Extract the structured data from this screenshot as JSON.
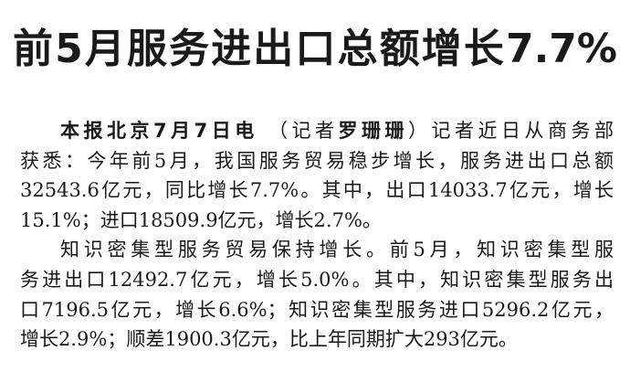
{
  "headline": "前5月服务进出口总额增长7.7%",
  "dateline": {
    "lead": "本报北京7月7日电",
    "reporter_open": "（记者",
    "reporter_name": "罗珊珊",
    "reporter_close": "）"
  },
  "paragraphs": [
    {
      "lines": [
        "记者近日从商务部",
        "获悉：今年前5月，我国服务贸易稳步增长，服务进出口总额",
        "32543.6亿元，同比增长7.7%。其中，出口14033.7亿元，增长",
        "15.1%；进口18509.9亿元，增长2.7%。"
      ]
    },
    {
      "lines": [
        "知识密集型服务贸易保持增长。前5月，知识密集型服",
        "务进出口12492.7亿元，增长5.0%。其中，知识密集型服务出",
        "口7196.5亿元，增长6.6%；知识密集型服务进口5296.2亿元，",
        "增长2.9%；顺差1900.3亿元，比上年同期扩大293亿元。"
      ]
    }
  ]
}
